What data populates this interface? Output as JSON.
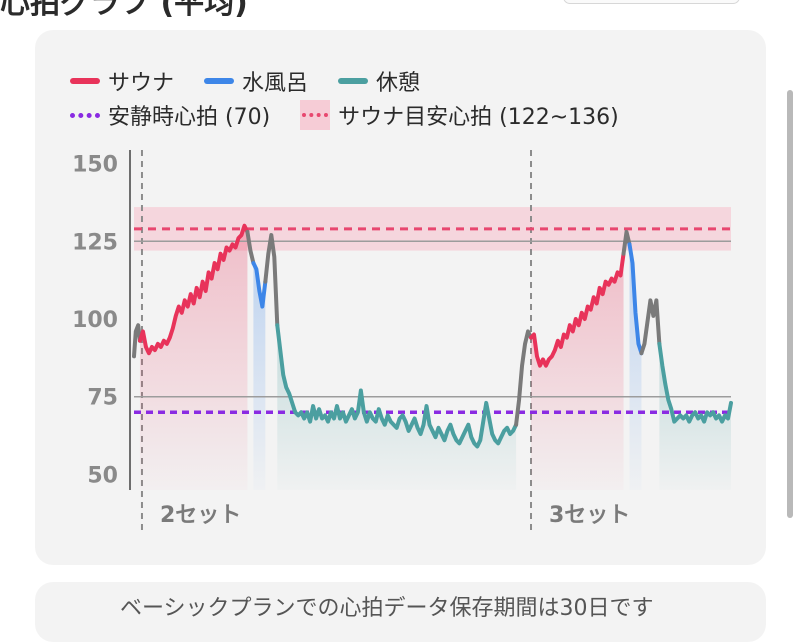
{
  "header": {
    "title_partial": "心拍グラフ (平均)"
  },
  "legend": {
    "sauna": "サウナ",
    "cold_bath": "水風呂",
    "rest": "休憩",
    "resting_hr": "安静時心拍 (70)",
    "sauna_target": "サウナ目安心拍 (122~136)"
  },
  "colors": {
    "sauna": "#e8335a",
    "cold_bath": "#3d86e8",
    "rest": "#4b9fa0",
    "transition": "#7a7a7a",
    "resting_line": "#8a2be2",
    "target_band": "#f6ccd6",
    "target_line": "#e8476f"
  },
  "footer": {
    "note_partial": "ベーシックプランでの心拍データ保存期間は30日です"
  },
  "chart_data": {
    "type": "line",
    "title": "",
    "xlabel": "",
    "ylabel": "",
    "ylim": [
      45,
      155
    ],
    "y_ticks": [
      150,
      125,
      100,
      75,
      50
    ],
    "x_range": [
      0,
      100
    ],
    "grid": false,
    "legend_position": "top",
    "set_labels": [
      {
        "label": "2セット",
        "x": 1
      },
      {
        "label": "3セット",
        "x": 66.5
      }
    ],
    "reference_lines": [
      {
        "name": "安静時心拍 (70)",
        "value": 70
      },
      {
        "name": "gray-75",
        "value": 75
      },
      {
        "name": "gray-125",
        "value": 125
      }
    ],
    "target_band": {
      "name": "サウナ目安心拍 (122~136)",
      "min": 122,
      "max": 136,
      "line": 129
    },
    "segments": [
      {
        "phase": "transition",
        "x": [
          0,
          0.3,
          0.7,
          1.0
        ],
        "y": [
          88,
          96,
          98,
          93
        ]
      },
      {
        "phase": "sauna",
        "x": [
          1.0,
          1.5,
          2,
          2.5,
          3,
          3.5,
          4,
          4.5,
          5,
          5.5,
          6,
          6.5,
          7,
          7.5,
          8,
          8.5,
          9,
          9.5,
          10,
          10.5,
          11,
          11.5,
          12,
          12.5,
          13,
          13.5,
          14,
          14.5,
          15,
          15.5,
          16,
          16.5,
          17,
          17.5,
          18,
          18.5,
          19
        ],
        "y": [
          93,
          96,
          91,
          89,
          91,
          90,
          92,
          91,
          93,
          92,
          94,
          97,
          101,
          104,
          102,
          106,
          104,
          108,
          105,
          110,
          107,
          112,
          109,
          115,
          113,
          118,
          116,
          121,
          119,
          123,
          122,
          124,
          123,
          126,
          127,
          130,
          128
        ]
      },
      {
        "phase": "transition",
        "x": [
          19,
          19.5,
          20
        ],
        "y": [
          128,
          122,
          118
        ]
      },
      {
        "phase": "cold_bath",
        "x": [
          20,
          20.5,
          21,
          21.5,
          22
        ],
        "y": [
          118,
          116,
          109,
          104,
          112
        ]
      },
      {
        "phase": "transition",
        "x": [
          22,
          22.5,
          23,
          23.5,
          24
        ],
        "y": [
          112,
          121,
          127,
          120,
          98
        ]
      },
      {
        "phase": "rest",
        "x": [
          24,
          24.5,
          25,
          25.5,
          26,
          26.5,
          27,
          27.5,
          28,
          28.5,
          29,
          29.5,
          30,
          30.5,
          31,
          31.5,
          32,
          32.5,
          33,
          33.5,
          34,
          34.5,
          35,
          35.5,
          36,
          36.5,
          37,
          37.5,
          38,
          38.5,
          39,
          39.5,
          40,
          40.5,
          41,
          41.5,
          42,
          42.5,
          43,
          43.5,
          44,
          44.5,
          45,
          45.5,
          46,
          46.5,
          47,
          47.5,
          48,
          48.5,
          49,
          49.5,
          50,
          50.5,
          51,
          51.5,
          52,
          52.5,
          53,
          53.5,
          54,
          54.5,
          55,
          55.5,
          56,
          56.5,
          57,
          57.5,
          58,
          58.5,
          59,
          59.5,
          60,
          60.5,
          61,
          61.5,
          62,
          62.5,
          63,
          63.5,
          64
        ],
        "y": [
          98,
          90,
          82,
          78,
          76,
          73,
          70,
          69,
          70,
          68,
          70,
          67,
          72,
          68,
          71,
          68,
          69,
          67,
          70,
          68,
          72,
          68,
          70,
          67,
          69,
          71,
          68,
          70,
          77,
          70,
          67,
          70,
          68,
          67,
          71,
          68,
          66,
          69,
          67,
          66,
          65,
          68,
          69,
          67,
          64,
          66,
          68,
          65,
          63,
          66,
          72,
          66,
          64,
          62,
          65,
          63,
          61,
          64,
          66,
          63,
          61,
          60,
          62,
          64,
          66,
          62,
          60,
          59,
          61,
          67,
          73,
          68,
          63,
          61,
          60,
          62,
          64,
          65,
          63,
          64,
          66
        ]
      },
      {
        "phase": "transition",
        "x": [
          64,
          64.5,
          65,
          65.5,
          66,
          66.5
        ],
        "y": [
          66,
          74,
          85,
          92,
          96,
          94
        ]
      },
      {
        "phase": "sauna",
        "x": [
          66.5,
          67,
          67.5,
          68,
          68.5,
          69,
          69.5,
          70,
          70.5,
          71,
          71.5,
          72,
          72.5,
          73,
          73.5,
          74,
          74.5,
          75,
          75.5,
          76,
          76.5,
          77,
          77.5,
          78,
          78.5,
          79,
          79.5,
          80,
          80.5,
          81,
          81.5,
          82
        ],
        "y": [
          94,
          95,
          88,
          85,
          87,
          85,
          87,
          88,
          90,
          93,
          91,
          95,
          94,
          98,
          96,
          100,
          98,
          102,
          100,
          104,
          103,
          107,
          105,
          110,
          108,
          112,
          111,
          113,
          112,
          115,
          114,
          121
        ]
      },
      {
        "phase": "transition",
        "x": [
          82,
          82.5,
          83
        ],
        "y": [
          121,
          128,
          124
        ]
      },
      {
        "phase": "cold_bath",
        "x": [
          83,
          83.5,
          84,
          84.5,
          85
        ],
        "y": [
          124,
          118,
          102,
          92,
          89
        ]
      },
      {
        "phase": "transition",
        "x": [
          85,
          85.5,
          86,
          86.5,
          87,
          87.5,
          88
        ],
        "y": [
          89,
          92,
          99,
          106,
          101,
          106,
          92
        ]
      },
      {
        "phase": "rest",
        "x": [
          88,
          88.5,
          89,
          89.5,
          90,
          90.5,
          91,
          91.5,
          92,
          92.5,
          93,
          93.5,
          94,
          94.5,
          95,
          95.5,
          96,
          96.5,
          97,
          97.5,
          98,
          98.5,
          99,
          99.5,
          100
        ],
        "y": [
          92,
          85,
          79,
          74,
          71,
          67,
          68,
          69,
          68,
          69,
          67,
          69,
          70,
          68,
          69,
          67,
          70,
          69,
          70,
          68,
          69,
          67,
          69,
          68,
          73
        ]
      }
    ]
  }
}
